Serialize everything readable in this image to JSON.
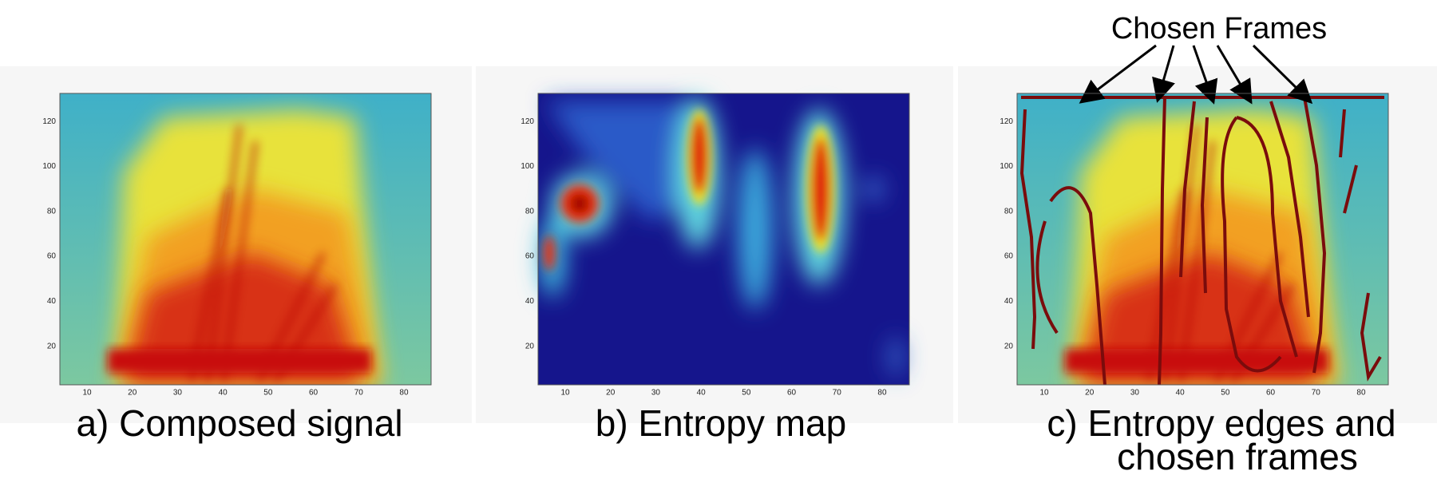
{
  "panels": [
    {
      "caption": [
        "a) Composed signal"
      ],
      "yticks": [
        120,
        100,
        80,
        60,
        40,
        20
      ],
      "xticks": [
        10,
        20,
        30,
        40,
        50,
        60,
        70,
        80
      ]
    },
    {
      "caption": [
        "b) Entropy map"
      ],
      "yticks": [
        120,
        100,
        80,
        60,
        40,
        20
      ],
      "xticks": [
        10,
        20,
        30,
        40,
        50,
        60,
        70,
        80
      ]
    },
    {
      "caption": [
        "c) Entropy edges and",
        "chosen frames"
      ],
      "yticks": [
        120,
        100,
        80,
        60,
        40,
        20
      ],
      "xticks": [
        10,
        20,
        30,
        40,
        50,
        60,
        70,
        80
      ]
    }
  ],
  "annotation": "Chosen Frames"
}
